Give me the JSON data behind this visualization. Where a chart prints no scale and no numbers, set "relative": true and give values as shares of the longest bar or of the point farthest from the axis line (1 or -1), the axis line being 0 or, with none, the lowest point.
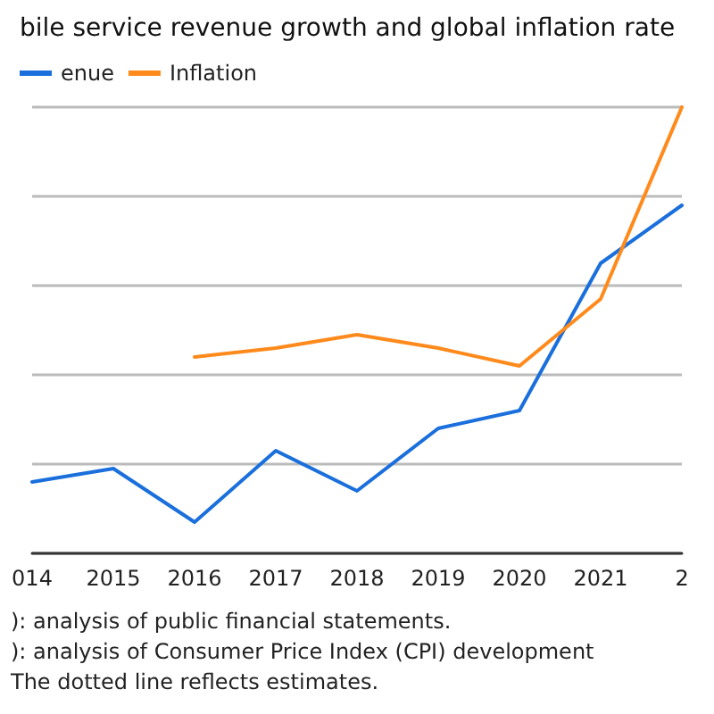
{
  "chart_data": {
    "type": "line",
    "title": "bile service revenue growth and global inflation rate",
    "categories": [
      "014",
      "2015",
      "2016",
      "2017",
      "2018",
      "2019",
      "2020",
      "2021",
      "2"
    ],
    "relative": true,
    "grid": "y",
    "legend": "top left",
    "marker": "none",
    "line_style": "solid",
    "series": [
      {
        "name": "enue",
        "color": "#1a6fdc",
        "values": [
          0.16,
          0.19,
          0.07,
          0.23,
          0.14,
          0.28,
          0.32,
          0.65,
          0.78
        ]
      },
      {
        "name": "Inflation",
        "color": "#ff8a1c",
        "values": [
          null,
          null,
          0.44,
          0.46,
          0.49,
          0.46,
          0.42,
          0.57,
          1.0
        ]
      }
    ],
    "annotations": [
      "): analysis of public financial statements.",
      "): analysis of Consumer Price Index (CPI) development",
      "The dotted line reflects estimates."
    ]
  }
}
